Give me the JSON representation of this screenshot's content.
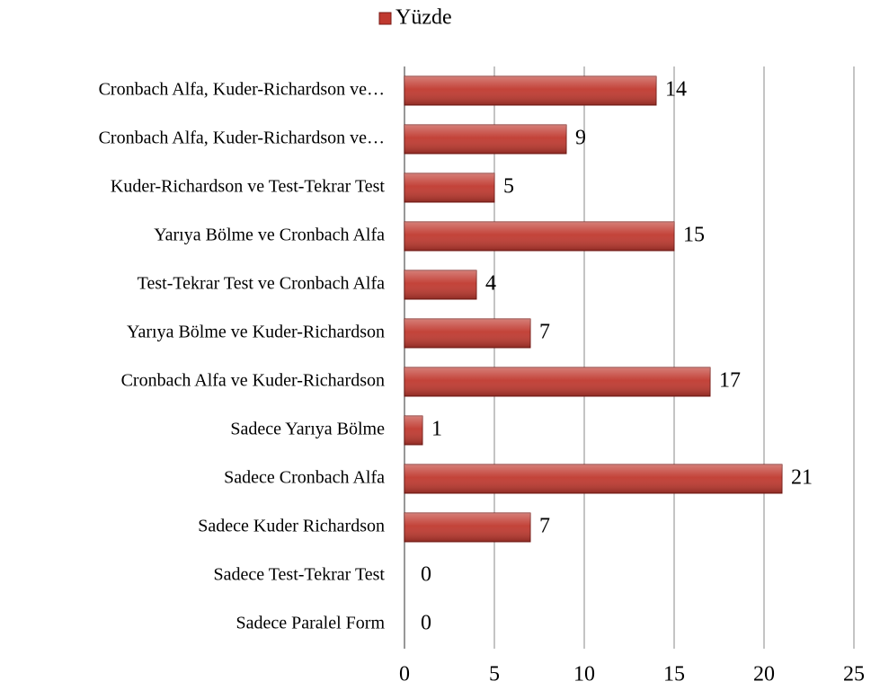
{
  "chart_data": {
    "type": "bar",
    "orientation": "horizontal",
    "categories": [
      "Cronbach Alfa, Kuder-Richardson ve…",
      "Cronbach Alfa, Kuder-Richardson ve…",
      "Kuder-Richardson ve Test-Tekrar Test",
      "Yarıya Bölme ve Cronbach Alfa",
      "Test-Tekrar Test ve Cronbach Alfa",
      "Yarıya Bölme ve Kuder-Richardson",
      "Cronbach Alfa ve Kuder-Richardson",
      "Sadece Yarıya Bölme",
      "Sadece Cronbach Alfa",
      "Sadece Kuder Richardson",
      "Sadece Test-Tekrar Test",
      "Sadece Paralel Form"
    ],
    "series": [
      {
        "name": "Yüzde",
        "color": "#c0392f",
        "values": [
          14,
          9,
          5,
          15,
          4,
          7,
          17,
          1,
          21,
          7,
          0,
          0
        ]
      }
    ],
    "xlim": [
      0,
      25
    ],
    "xticks": [
      0,
      5,
      10,
      15,
      20,
      25
    ],
    "grid": true,
    "legend": "top"
  }
}
